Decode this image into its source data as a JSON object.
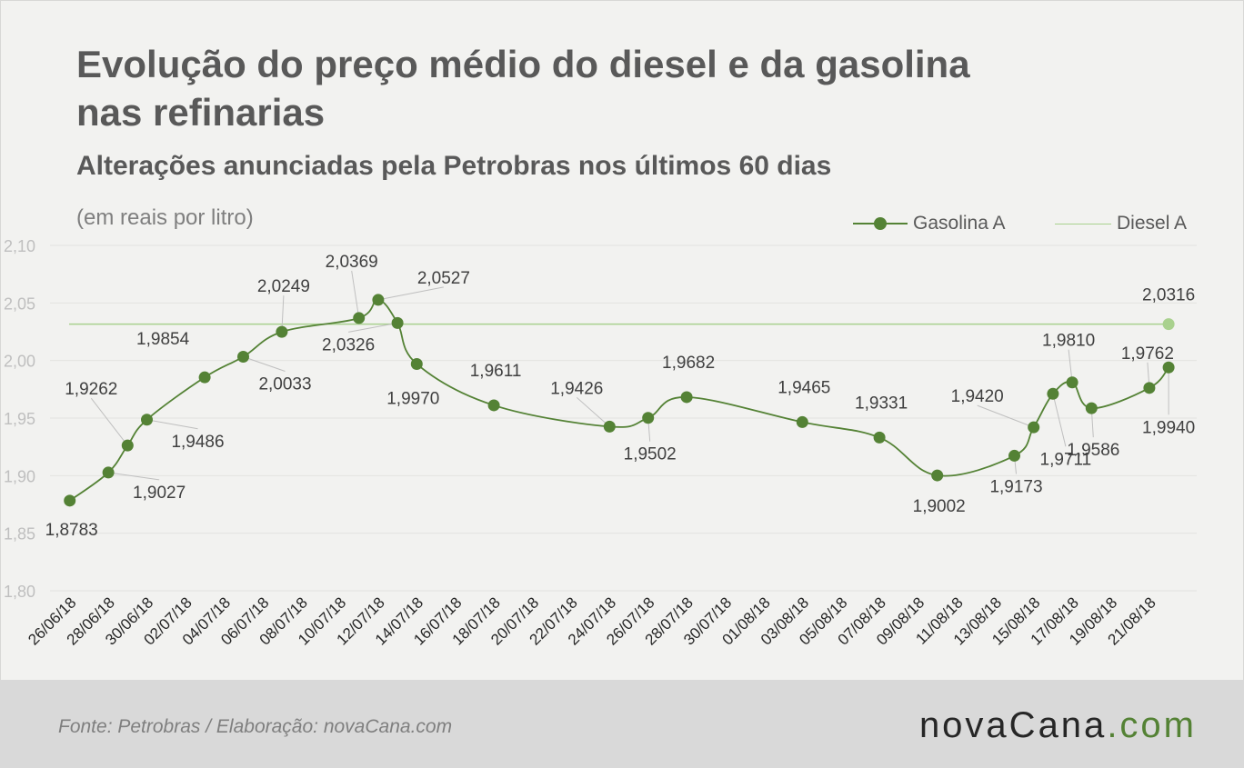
{
  "title": "Evolução do preço médio do diesel e da gasolina nas refinarias",
  "subtitle": "Alterações anunciadas pela Petrobras nos últimos 60 dias",
  "unit_note": "(em reais por litro)",
  "legend": {
    "gasolina": "Gasolina A",
    "diesel": "Diesel A"
  },
  "colors": {
    "gasolina": "#548235",
    "diesel": "#a9d18e",
    "background": "#f2f2f0",
    "footer": "#d9d9d9"
  },
  "footer": {
    "source": "Fonte:  Petrobras  / Elaboração:  novaCana.com",
    "brand_main": "novaCana",
    "brand_accent": ".com"
  },
  "chart_data": {
    "type": "line",
    "ylim": [
      1.8,
      2.1
    ],
    "yticks": [
      "1,80",
      "1,85",
      "1,90",
      "1,95",
      "2,00",
      "2,05",
      "2,10"
    ],
    "x_tick_labels": [
      "26/06/18",
      "28/06/18",
      "30/06/18",
      "02/07/18",
      "04/07/18",
      "06/07/18",
      "08/07/18",
      "10/07/18",
      "12/07/18",
      "14/07/18",
      "16/07/18",
      "18/07/18",
      "20/07/18",
      "22/07/18",
      "24/07/18",
      "26/07/18",
      "28/07/18",
      "30/07/18",
      "01/08/18",
      "03/08/18",
      "05/08/18",
      "07/08/18",
      "09/08/18",
      "11/08/18",
      "13/08/18",
      "15/08/18",
      "17/08/18",
      "19/08/18",
      "21/08/18"
    ],
    "grid": true,
    "legend_position": "top-right",
    "series": [
      {
        "name": "Gasolina A",
        "points": [
          {
            "x": "26/06/18",
            "y": 1.8783,
            "label": "1,8783"
          },
          {
            "x": "28/06/18",
            "y": 1.9027,
            "label": "1,9027"
          },
          {
            "x": "29/06/18",
            "y": 1.9262,
            "label": "1,9262"
          },
          {
            "x": "30/06/18",
            "y": 1.9486,
            "label": "1,9486"
          },
          {
            "x": "03/07/18",
            "y": 1.9854,
            "label": "1,9854"
          },
          {
            "x": "05/07/18",
            "y": 2.0033,
            "label": "2,0033"
          },
          {
            "x": "07/07/18",
            "y": 2.0249,
            "label": "2,0249"
          },
          {
            "x": "11/07/18",
            "y": 2.0369,
            "label": "2,0369"
          },
          {
            "x": "12/07/18",
            "y": 2.0527,
            "label": "2,0527"
          },
          {
            "x": "13/07/18",
            "y": 2.0326,
            "label": "2,0326"
          },
          {
            "x": "14/07/18",
            "y": 1.997,
            "label": "1,9970"
          },
          {
            "x": "18/07/18",
            "y": 1.9611,
            "label": "1,9611"
          },
          {
            "x": "24/07/18",
            "y": 1.9426,
            "label": "1,9426"
          },
          {
            "x": "26/07/18",
            "y": 1.9502,
            "label": "1,9502"
          },
          {
            "x": "28/07/18",
            "y": 1.9682,
            "label": "1,9682"
          },
          {
            "x": "03/08/18",
            "y": 1.9465,
            "label": "1,9465"
          },
          {
            "x": "07/08/18",
            "y": 1.9331,
            "label": "1,9331"
          },
          {
            "x": "10/08/18",
            "y": 1.9002,
            "label": "1,9002"
          },
          {
            "x": "14/08/18",
            "y": 1.9173,
            "label": "1,9173"
          },
          {
            "x": "15/08/18",
            "y": 1.942,
            "label": "1,9420"
          },
          {
            "x": "16/08/18",
            "y": 1.9711,
            "label": "1,9711"
          },
          {
            "x": "17/08/18",
            "y": 1.981,
            "label": "1,9810"
          },
          {
            "x": "18/08/18",
            "y": 1.9586,
            "label": "1,9586"
          },
          {
            "x": "21/08/18",
            "y": 1.9762,
            "label": "1,9762"
          },
          {
            "x": "22/08/18",
            "y": 1.994,
            "label": "1,9940"
          }
        ]
      },
      {
        "name": "Diesel A",
        "constant": 2.0316,
        "end_point": {
          "x": "22/08/18",
          "y": 2.0316,
          "label": "2,0316"
        }
      }
    ]
  }
}
